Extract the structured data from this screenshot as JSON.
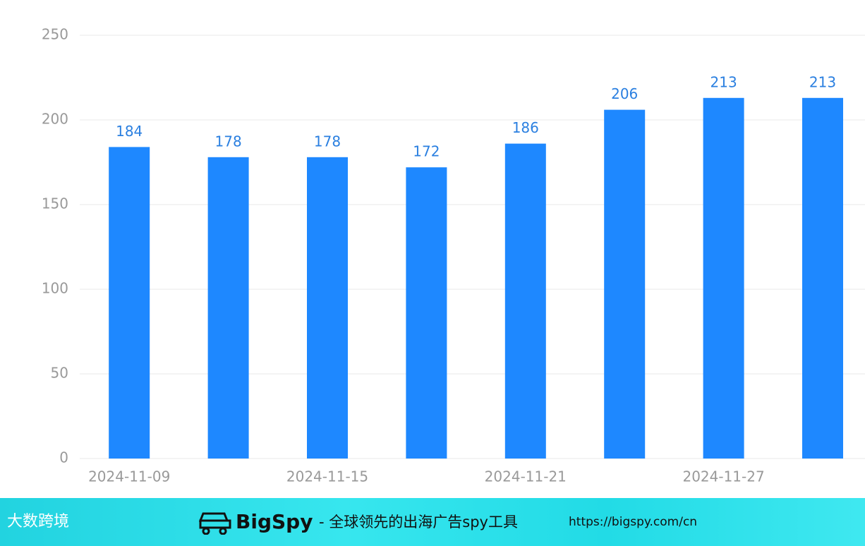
{
  "chart_data": {
    "type": "bar",
    "categories": [
      "2024-11-09",
      null,
      "2024-11-15",
      null,
      "2024-11-21",
      null,
      "2024-11-27",
      null
    ],
    "values": [
      184,
      178,
      178,
      172,
      186,
      206,
      213,
      213
    ],
    "color": "#1e88ff",
    "ylim": [
      0,
      250
    ],
    "yticks": [
      0,
      50,
      100,
      150,
      200,
      250
    ],
    "grid": true
  },
  "footer": {
    "logo": "大数跨境",
    "brand": "BigSpy",
    "tagline": "- 全球领先的出海广告spy工具",
    "url": "https://bigspy.com/cn"
  }
}
